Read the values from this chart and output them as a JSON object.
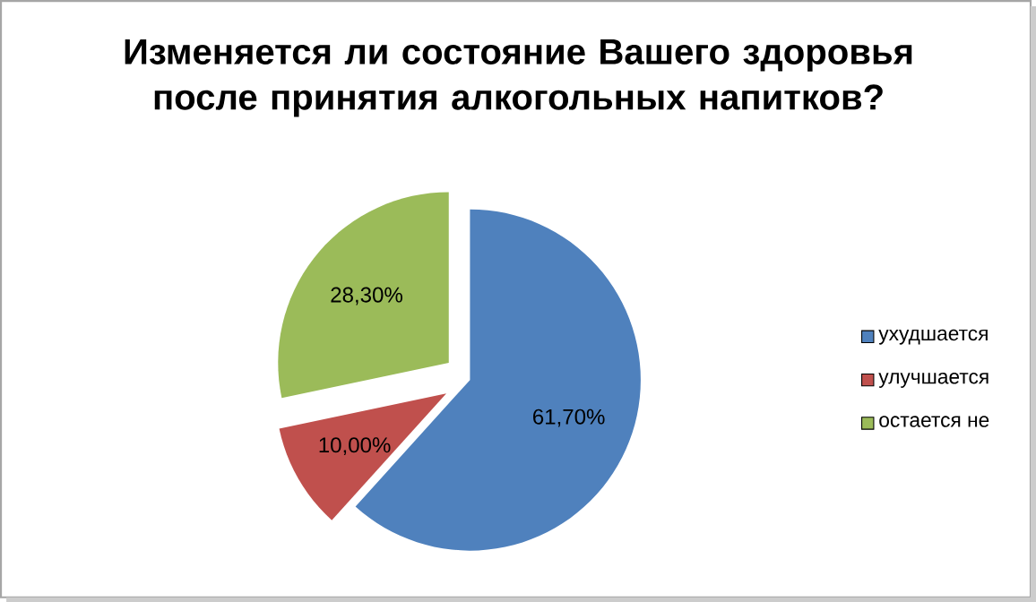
{
  "chart_data": {
    "type": "pie",
    "title": "Изменяется ли состояние Вашего здоровья после принятия алкогольных напитков?",
    "categories": [
      "ухудшается",
      "улучшается",
      "остается не"
    ],
    "values": [
      61.7,
      10.0,
      28.3
    ],
    "colors": [
      "#4f81bd",
      "#c0504d",
      "#9bbb59"
    ],
    "value_labels": [
      "61,70%",
      "10,00%",
      "28,30%"
    ],
    "legend": "right"
  }
}
